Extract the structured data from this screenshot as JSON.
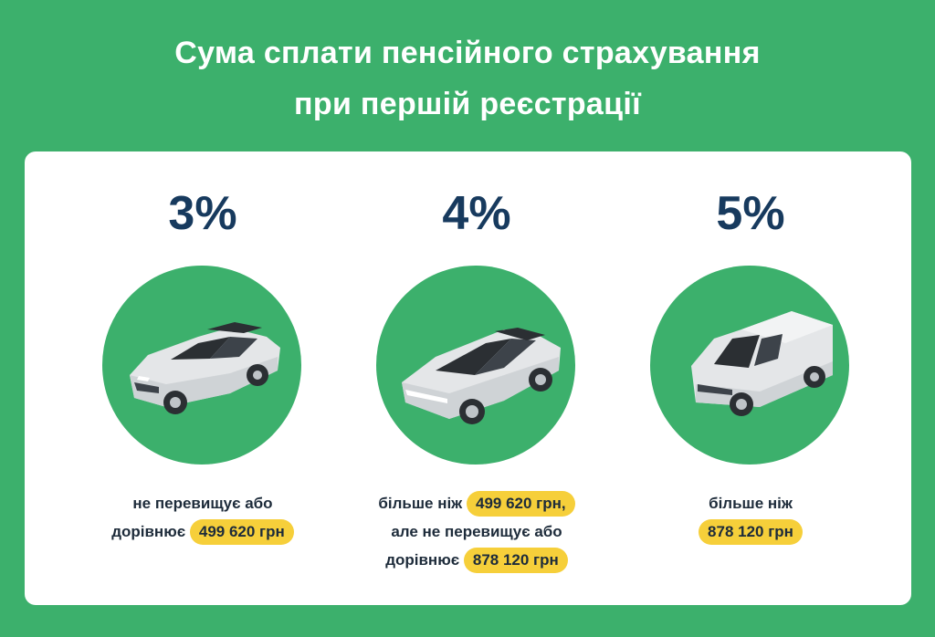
{
  "title": {
    "line1": "Сума сплати пенсійного страхування",
    "line2": "при першій реєстрації"
  },
  "colors": {
    "background": "#3cb06c",
    "percent_text": "#173a5e",
    "highlight": "#f6cf3a",
    "card": "#ffffff"
  },
  "columns": [
    {
      "percent": "3%",
      "icon": "sedan-car-icon",
      "line1_text": "не перевищує або",
      "line2_text": "дорівнює",
      "line2_highlight": "499 620 грн"
    },
    {
      "percent": "4%",
      "icon": "cybertruck-car-icon",
      "line1_text": "більше ніж",
      "line1_highlight": "499 620 грн,",
      "line2_text": "але не перевищує або",
      "line3_text": "дорівнює",
      "line3_highlight": "878 120 грн"
    },
    {
      "percent": "5%",
      "icon": "van-car-icon",
      "line1_text": "більше ніж",
      "line2_highlight": "878 120 грн"
    }
  ]
}
